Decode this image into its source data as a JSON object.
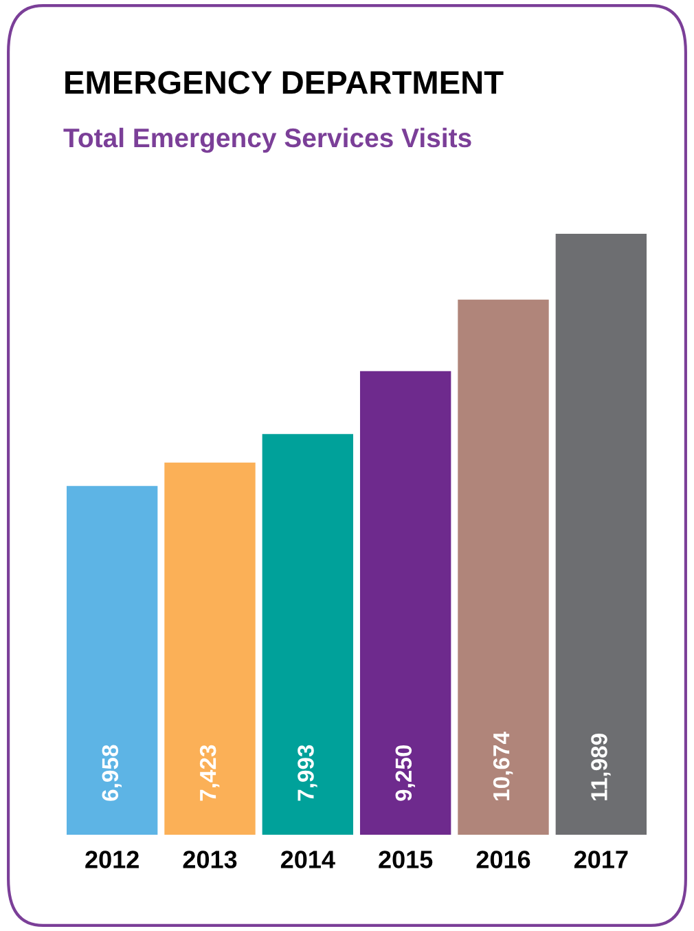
{
  "chart_data": {
    "type": "bar",
    "title": "EMERGENCY DEPARTMENT",
    "subtitle": "Total Emergency Services Visits",
    "categories": [
      "2012",
      "2013",
      "2014",
      "2015",
      "2016",
      "2017"
    ],
    "values": [
      6958,
      7423,
      7993,
      9250,
      10674,
      11989
    ],
    "colors": [
      "#5db4e5",
      "#fbb057",
      "#00a19a",
      "#6e2a8d",
      "#b0857a",
      "#6d6e71"
    ],
    "value_labels": [
      "6,958",
      "7,423",
      "7,993",
      "9,250",
      "10,674",
      "11,989"
    ]
  }
}
